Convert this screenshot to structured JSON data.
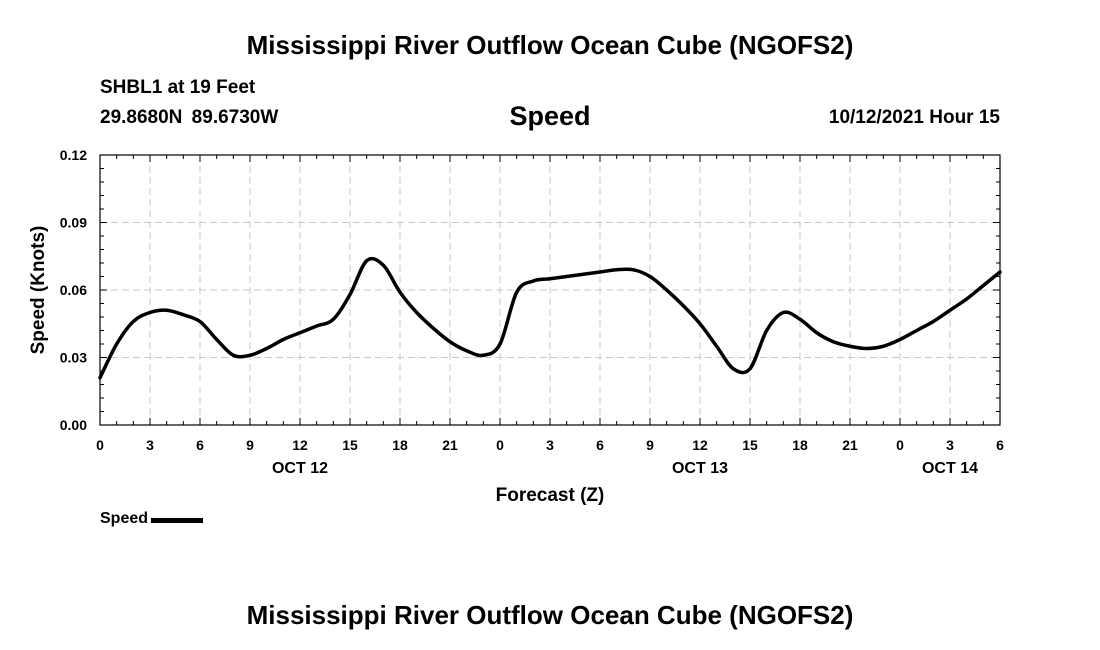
{
  "header": {
    "title": "Mississippi River Outflow Ocean Cube (NGOFS2)",
    "station": "SHBL1 at 19 Feet",
    "coords": "29.8680N  89.6730W",
    "variable": "Speed",
    "datetime": "10/12/2021 Hour 15"
  },
  "footer": {
    "title": "Mississippi River Outflow Ocean Cube (NGOFS2)"
  },
  "legend": {
    "label": "Speed"
  },
  "colors": {
    "line": "#000000",
    "grid": "#c8c8c8"
  },
  "chart_data": {
    "type": "line",
    "title": "Speed",
    "xlabel": "Forecast (Z)",
    "ylabel": "Speed (Knots)",
    "xlim": [
      0,
      54
    ],
    "ylim": [
      0,
      0.12
    ],
    "grid": true,
    "legend_position": "bottom-left",
    "x_ticks": [
      0,
      3,
      6,
      9,
      12,
      15,
      18,
      21,
      24,
      27,
      30,
      33,
      36,
      39,
      42,
      45,
      48,
      51,
      54
    ],
    "x_tick_labels": [
      "0",
      "3",
      "6",
      "9",
      "12",
      "15",
      "18",
      "21",
      "0",
      "3",
      "6",
      "9",
      "12",
      "15",
      "18",
      "21",
      "0",
      "3",
      "6"
    ],
    "date_labels": [
      {
        "x": 12,
        "label": "OCT 12"
      },
      {
        "x": 36,
        "label": "OCT 13"
      },
      {
        "x": 51,
        "label": "OCT 14"
      }
    ],
    "y_ticks": [
      0,
      0.03,
      0.06,
      0.09,
      0.12
    ],
    "y_tick_labels": [
      "0.00",
      "0.03",
      "0.06",
      "0.09",
      "0.12"
    ],
    "series": [
      {
        "name": "Speed",
        "x": [
          0,
          1,
          2,
          3,
          4,
          5,
          6,
          7,
          8,
          9,
          10,
          11,
          12,
          13,
          14,
          15,
          16,
          17,
          18,
          19,
          20,
          21,
          22,
          23,
          24,
          25,
          26,
          27,
          28,
          29,
          30,
          31,
          32,
          33,
          34,
          35,
          36,
          37,
          38,
          39,
          40,
          41,
          42,
          43,
          44,
          45,
          46,
          47,
          48,
          49,
          50,
          51,
          52,
          53,
          54
        ],
        "values": [
          0.021,
          0.036,
          0.046,
          0.05,
          0.051,
          0.049,
          0.046,
          0.038,
          0.031,
          0.031,
          0.034,
          0.038,
          0.041,
          0.044,
          0.047,
          0.058,
          0.073,
          0.071,
          0.059,
          0.05,
          0.043,
          0.037,
          0.033,
          0.031,
          0.036,
          0.059,
          0.064,
          0.065,
          0.066,
          0.067,
          0.068,
          0.069,
          0.069,
          0.066,
          0.06,
          0.053,
          0.045,
          0.035,
          0.025,
          0.025,
          0.042,
          0.05,
          0.047,
          0.041,
          0.037,
          0.035,
          0.034,
          0.035,
          0.038,
          0.042,
          0.046,
          0.051,
          0.056,
          0.062,
          0.068
        ]
      }
    ]
  }
}
